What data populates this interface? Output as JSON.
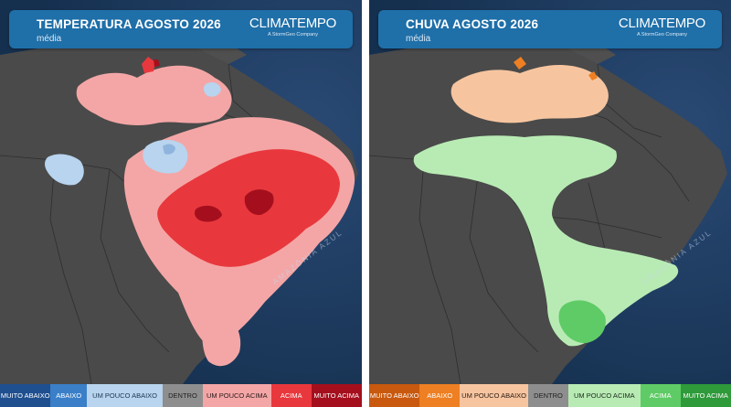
{
  "panels": [
    {
      "title": "TEMPERATURA AGOSTO 2026",
      "subtitle": "média",
      "brand": "CLIMATEMPO",
      "brand_tagline": "A StormGeo Company",
      "ocean_label": "AMAZÔNIA AZUL",
      "legend": [
        {
          "label": "MUITO ABAIXO",
          "bg": "#1f4f8f",
          "fg": "#ffffff"
        },
        {
          "label": "ABAIXO",
          "bg": "#3a7fc8",
          "fg": "#ffffff"
        },
        {
          "label": "UM POUCO ABAIXO",
          "bg": "#b8d4ee",
          "fg": "#1e3550"
        },
        {
          "label": "DENTRO",
          "bg": "#8e8e8e",
          "fg": "#1e1e1e"
        },
        {
          "label": "UM POUCO ACIMA",
          "bg": "#f4a6a6",
          "fg": "#2a1a1a"
        },
        {
          "label": "ACIMA",
          "bg": "#e8383d",
          "fg": "#ffffff"
        },
        {
          "label": "MUITO ACIMA",
          "bg": "#a50f1d",
          "fg": "#ffffff"
        }
      ],
      "colors": {
        "weak": "#f4a6a6",
        "strong": "#e8383d",
        "extreme": "#a50f1d",
        "cool": "#b8d4ee",
        "cool2": "#8fb4dd"
      }
    },
    {
      "title": "CHUVA AGOSTO 2026",
      "subtitle": "média",
      "brand": "CLIMATEMPO",
      "brand_tagline": "A StormGeo Company",
      "ocean_label": "AMAZÔNIA AZUL",
      "legend": [
        {
          "label": "MUITO ABAIXO",
          "bg": "#c8590e",
          "fg": "#ffffff"
        },
        {
          "label": "ABAIXO",
          "bg": "#ee7f22",
          "fg": "#ffffff"
        },
        {
          "label": "UM POUCO ABAIXO",
          "bg": "#f6c5a0",
          "fg": "#2a1a10"
        },
        {
          "label": "DENTRO",
          "bg": "#8e8e8e",
          "fg": "#1e1e1e"
        },
        {
          "label": "UM POUCO ACIMA",
          "bg": "#b8ebb4",
          "fg": "#1a2a1a"
        },
        {
          "label": "ACIMA",
          "bg": "#5fcb66",
          "fg": "#ffffff"
        },
        {
          "label": "MUITO ACIMA",
          "bg": "#2e9a3a",
          "fg": "#ffffff"
        }
      ],
      "colors": {
        "dry": "#f6c5a0",
        "dry2": "#ee7f22",
        "wet": "#b8ebb4",
        "wet2": "#5fcb66"
      }
    }
  ]
}
